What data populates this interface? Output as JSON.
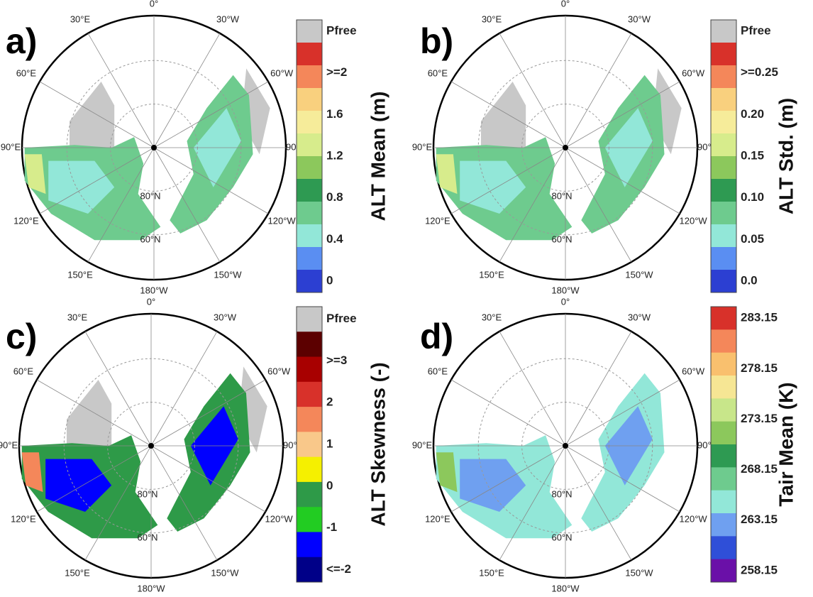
{
  "panels": [
    {
      "label": "a)",
      "title": "ALT Mean (m)",
      "legend": [
        "Pfree",
        ">=2",
        "1.6",
        "1.2",
        "0.8",
        "0.4",
        "0"
      ],
      "colors": [
        "#c8c8c8",
        "#d8312a",
        "#f4875a",
        "#f9d07e",
        "#f6ec9a",
        "#d7ec8c",
        "#8cc85c",
        "#2e9a52",
        "#6ecb8e",
        "#92e7d8",
        "#5a8ef2",
        "#2c3fd2"
      ]
    },
    {
      "label": "b)",
      "title": "ALT Std. (m)",
      "legend": [
        "Pfree",
        ">=0.25",
        "0.20",
        "0.15",
        "0.10",
        "0.05",
        "0.0"
      ],
      "colors": [
        "#c8c8c8",
        "#d8312a",
        "#f4875a",
        "#f9d07e",
        "#f6ec9a",
        "#d7ec8c",
        "#8cc85c",
        "#2e9a52",
        "#6ecb8e",
        "#92e7d8",
        "#5a8ef2",
        "#2c3fd2"
      ]
    },
    {
      "label": "c)",
      "title": "ALT Skewness (-)",
      "legend": [
        "Pfree",
        ">=3",
        "2",
        "1",
        "0",
        "-1",
        "<=-2"
      ],
      "colors": [
        "#c8c8c8",
        "#5c0000",
        "#a80000",
        "#d8312a",
        "#f4875a",
        "#f9c88a",
        "#f5f000",
        "#2e9a48",
        "#22cc22",
        "#0000ff",
        "#000088"
      ]
    },
    {
      "label": "d)",
      "title": "Tair Mean (K)",
      "legend": [
        "283.15",
        "278.15",
        "273.15",
        "268.15",
        "263.15",
        "258.15"
      ],
      "colors": [
        "#d8312a",
        "#f4875a",
        "#f9c06e",
        "#f6e694",
        "#c8e68a",
        "#8cc85c",
        "#2e9a52",
        "#6ecb8e",
        "#92e7d8",
        "#6fa0f0",
        "#2f4fd8",
        "#6a10a8"
      ]
    }
  ],
  "lon_labels": [
    "0°",
    "30°W",
    "60°W",
    "90°W",
    "120°W",
    "150°W",
    "180°W",
    "150°E",
    "120°E",
    "90°E",
    "60°E",
    "30°E"
  ],
  "lat_labels": [
    "80°N",
    "60°N"
  ]
}
